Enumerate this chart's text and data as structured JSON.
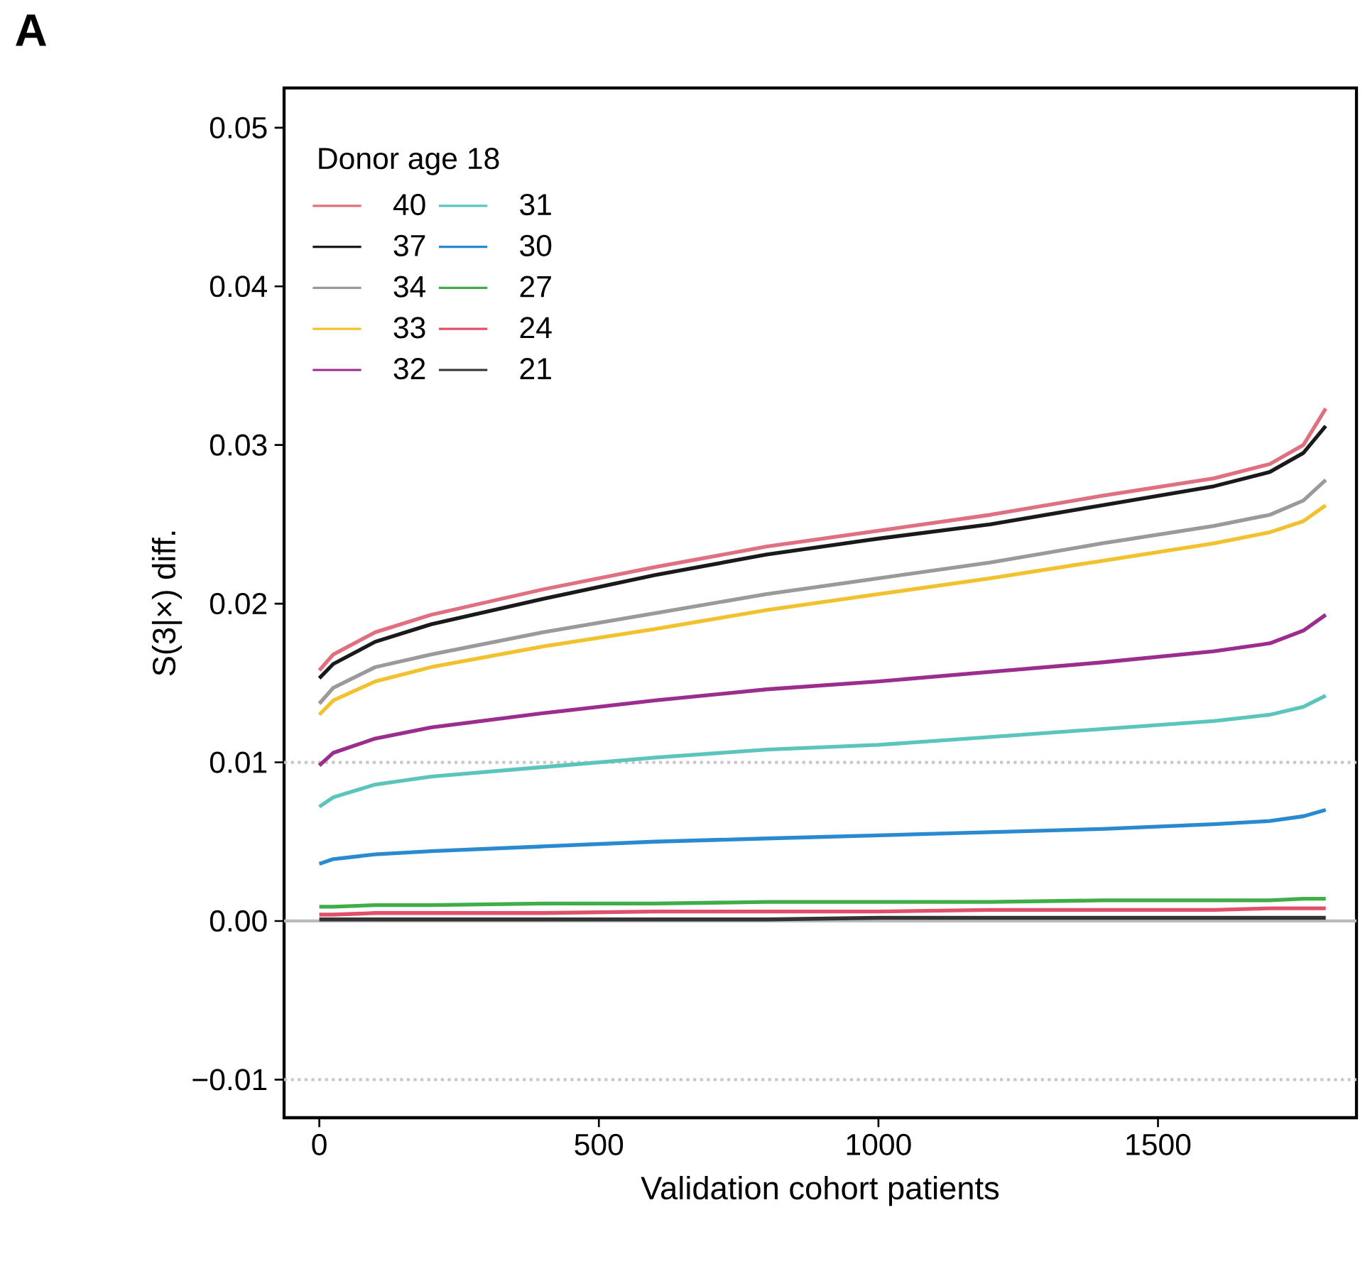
{
  "chart_data": {
    "type": "line",
    "xlabel": "Validation cohort patients",
    "ylabel": "S(3|×) diff.",
    "legend_title": "Donor age 18",
    "legend": "top left",
    "grid": false,
    "marker": "none",
    "line_style": "solid",
    "annotations": [
      "A"
    ],
    "xlim": [
      -63,
      1855
    ],
    "ylim": [
      -0.0124,
      0.0525
    ],
    "xticks": [
      0,
      500,
      1000,
      1500
    ],
    "yticks": [
      {
        "value": -0.01,
        "label": "−0.01"
      },
      {
        "value": 0,
        "label": "0.00"
      },
      {
        "value": 0.01,
        "label": "0.01"
      },
      {
        "value": 0.02,
        "label": "0.02"
      },
      {
        "value": 0.03,
        "label": "0.03"
      },
      {
        "value": 0.04,
        "label": "0.04"
      },
      {
        "value": 0.05,
        "label": "0.05"
      }
    ],
    "ref_lines": [
      {
        "axis": "y",
        "value": 0.01,
        "color": "#c8c8c8",
        "line_style": "dotted"
      },
      {
        "axis": "y",
        "value": -0.01,
        "color": "#c8c8c8",
        "line_style": "dotted"
      },
      {
        "axis": "y",
        "value": 0,
        "color": "#bbbbbb",
        "line_style": "solid"
      }
    ],
    "x": [
      0,
      25,
      100,
      200,
      400,
      600,
      800,
      1000,
      1200,
      1400,
      1600,
      1700,
      1760,
      1800
    ],
    "series": [
      {
        "name": "40",
        "color": "#e07080",
        "values": [
          0.0158,
          0.0168,
          0.0182,
          0.0193,
          0.0209,
          0.0223,
          0.0236,
          0.0246,
          0.0256,
          0.0268,
          0.0279,
          0.0288,
          0.03,
          0.0323
        ]
      },
      {
        "name": "37",
        "color": "#1a1a1a",
        "values": [
          0.0153,
          0.0162,
          0.0176,
          0.0187,
          0.0203,
          0.0218,
          0.0231,
          0.0241,
          0.025,
          0.0262,
          0.0274,
          0.0283,
          0.0295,
          0.0312
        ]
      },
      {
        "name": "34",
        "color": "#9a9a9a",
        "values": [
          0.0137,
          0.0147,
          0.016,
          0.0168,
          0.0182,
          0.0194,
          0.0206,
          0.0216,
          0.0226,
          0.0238,
          0.0249,
          0.0256,
          0.0265,
          0.0278
        ]
      },
      {
        "name": "33",
        "color": "#f2c12e",
        "values": [
          0.013,
          0.0139,
          0.0151,
          0.016,
          0.0173,
          0.0184,
          0.0196,
          0.0206,
          0.0216,
          0.0227,
          0.0238,
          0.0245,
          0.0252,
          0.0262
        ]
      },
      {
        "name": "32",
        "color": "#9b2d8e",
        "values": [
          0.0098,
          0.0106,
          0.0115,
          0.0122,
          0.0131,
          0.0139,
          0.0146,
          0.0151,
          0.0157,
          0.0163,
          0.017,
          0.0175,
          0.0183,
          0.0193
        ]
      },
      {
        "name": "31",
        "color": "#5cc5bb",
        "values": [
          0.0072,
          0.0078,
          0.0086,
          0.0091,
          0.0097,
          0.0103,
          0.0108,
          0.0111,
          0.0116,
          0.0121,
          0.0126,
          0.013,
          0.0135,
          0.0142
        ]
      },
      {
        "name": "30",
        "color": "#2a8ad0",
        "values": [
          0.0036,
          0.0039,
          0.0042,
          0.0044,
          0.0047,
          0.005,
          0.0052,
          0.0054,
          0.0056,
          0.0058,
          0.0061,
          0.0063,
          0.0066,
          0.007
        ]
      },
      {
        "name": "27",
        "color": "#3fae49",
        "values": [
          0.0009,
          0.0009,
          0.001,
          0.001,
          0.0011,
          0.0011,
          0.0012,
          0.0012,
          0.0012,
          0.0013,
          0.0013,
          0.0013,
          0.0014,
          0.0014
        ]
      },
      {
        "name": "24",
        "color": "#e0506a",
        "values": [
          0.0004,
          0.0004,
          0.0005,
          0.0005,
          0.0005,
          0.0006,
          0.0006,
          0.0006,
          0.0007,
          0.0007,
          0.0007,
          0.0008,
          0.0008,
          0.0008
        ]
      },
      {
        "name": "21",
        "color": "#333333",
        "values": [
          0.0001,
          0.0001,
          0.0001,
          0.0001,
          0.0001,
          0.0001,
          0.0001,
          0.0002,
          0.0002,
          0.0002,
          0.0002,
          0.0002,
          0.0002,
          0.0002
        ]
      }
    ]
  }
}
